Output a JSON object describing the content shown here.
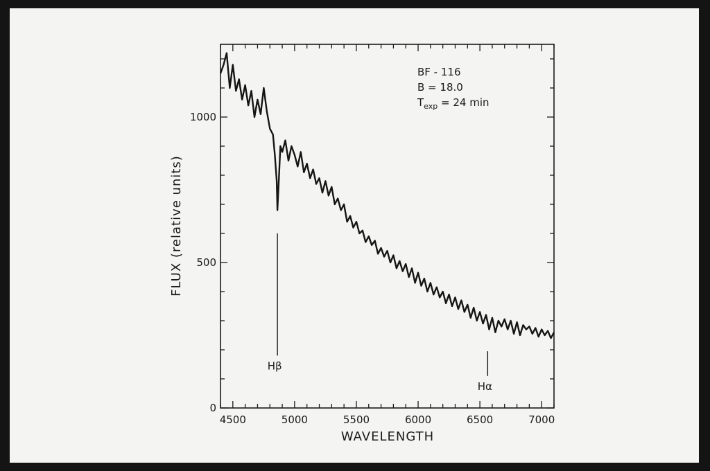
{
  "chart_data": {
    "type": "line",
    "title": "",
    "xlabel": "WAVELENGTH",
    "ylabel": "FLUX  (relative units)",
    "xlim": [
      4400,
      7100
    ],
    "ylim": [
      0,
      1250
    ],
    "x_ticks": [
      4500,
      5000,
      5500,
      6000,
      6500,
      7000
    ],
    "x_tick_labels": [
      "4500",
      "5000",
      "5500",
      "6000",
      "6500",
      "7000"
    ],
    "y_ticks": [
      0,
      500,
      1000
    ],
    "y_tick_labels": [
      "0",
      "500",
      "1000"
    ],
    "grid": false,
    "legend": "none",
    "annotations_text": {
      "object": "BF - 116",
      "magnitude": "B = 18.0",
      "exposure_prefix": "T",
      "exposure_sub": "exp",
      "exposure_suffix": " = 24 min"
    },
    "line_markers": [
      {
        "label": "Hβ",
        "x": 4861,
        "y_top": 600,
        "y_bottom": 180
      },
      {
        "label": "Hα",
        "x": 6563,
        "y_top": 195,
        "y_bottom": 110
      }
    ],
    "series": [
      {
        "x": [
          4400,
          4425,
          4450,
          4475,
          4500,
          4525,
          4550,
          4575,
          4600,
          4625,
          4650,
          4675,
          4700,
          4725,
          4750,
          4775,
          4800,
          4825,
          4840,
          4855,
          4861,
          4870,
          4885,
          4900,
          4925,
          4950,
          4975,
          5000,
          5025,
          5050,
          5075,
          5100,
          5125,
          5150,
          5175,
          5200,
          5225,
          5250,
          5275,
          5300,
          5325,
          5350,
          5375,
          5400,
          5425,
          5450,
          5475,
          5500,
          5525,
          5550,
          5575,
          5600,
          5625,
          5650,
          5675,
          5700,
          5725,
          5750,
          5775,
          5800,
          5825,
          5850,
          5875,
          5900,
          5925,
          5950,
          5975,
          6000,
          6025,
          6050,
          6075,
          6100,
          6125,
          6150,
          6175,
          6200,
          6225,
          6250,
          6275,
          6300,
          6325,
          6350,
          6375,
          6400,
          6425,
          6450,
          6475,
          6500,
          6525,
          6550,
          6575,
          6600,
          6625,
          6650,
          6675,
          6700,
          6725,
          6750,
          6775,
          6800,
          6825,
          6850,
          6875,
          6900,
          6925,
          6950,
          6975,
          7000,
          7025,
          7050,
          7075,
          7100
        ],
        "y": [
          1150,
          1180,
          1220,
          1100,
          1180,
          1090,
          1130,
          1060,
          1110,
          1040,
          1090,
          1000,
          1060,
          1010,
          1100,
          1020,
          960,
          940,
          870,
          780,
          680,
          760,
          900,
          880,
          920,
          850,
          900,
          870,
          830,
          880,
          810,
          840,
          790,
          820,
          770,
          790,
          740,
          780,
          730,
          760,
          700,
          720,
          680,
          700,
          640,
          660,
          620,
          640,
          600,
          610,
          570,
          590,
          560,
          575,
          530,
          550,
          520,
          540,
          500,
          525,
          480,
          505,
          470,
          495,
          450,
          480,
          430,
          465,
          420,
          445,
          400,
          430,
          390,
          415,
          380,
          400,
          360,
          390,
          350,
          380,
          340,
          370,
          330,
          355,
          310,
          345,
          300,
          330,
          290,
          320,
          270,
          310,
          260,
          300,
          280,
          305,
          270,
          300,
          255,
          295,
          250,
          285,
          270,
          280,
          255,
          275,
          245,
          270,
          250,
          265,
          240,
          260
        ]
      }
    ]
  }
}
